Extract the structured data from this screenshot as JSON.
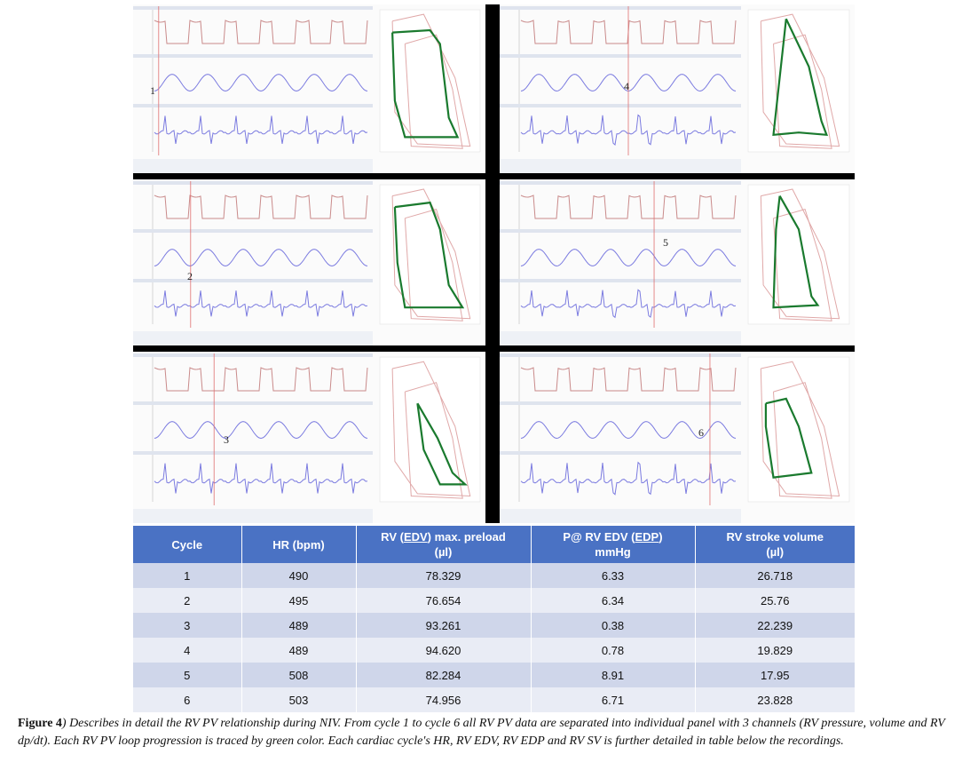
{
  "panels": [
    {
      "label": "1"
    },
    {
      "label": "4"
    },
    {
      "label": "2"
    },
    {
      "label": "5"
    },
    {
      "label": "3"
    },
    {
      "label": "6"
    }
  ],
  "table": {
    "headers": {
      "cycle": "Cycle",
      "hr": "HR (bpm)",
      "edv_1": "RV (",
      "edv_ul": "EDV",
      "edv_2": ") max. preload",
      "edv_unit": "(µl)",
      "edp_1": "P@ RV EDV (",
      "edp_ul": "EDP",
      "edp_2": ")",
      "edp_unit": "mmHg",
      "sv_1": "RV stroke volume",
      "sv_unit": "(µl)"
    },
    "rows": [
      {
        "cycle": "1",
        "hr": "490",
        "edv": "78.329",
        "edp": "6.33",
        "sv": "26.718"
      },
      {
        "cycle": "2",
        "hr": "495",
        "edv": "76.654",
        "edp": "6.34",
        "sv": "25.76"
      },
      {
        "cycle": "3",
        "hr": "489",
        "edv": "93.261",
        "edp": "0.38",
        "sv": "22.239"
      },
      {
        "cycle": "4",
        "hr": "489",
        "edv": "94.620",
        "edp": "0.78",
        "sv": "19.829"
      },
      {
        "cycle": "5",
        "hr": "508",
        "edv": "82.284",
        "edp": "8.91",
        "sv": "17.95"
      },
      {
        "cycle": "6",
        "hr": "503",
        "edv": "74.956",
        "edp": "6.71",
        "sv": "23.828"
      }
    ]
  },
  "caption": {
    "label": "Figure 4",
    "text": ") Describes in detail the RV PV relationship during NIV. From cycle 1 to cycle 6 all RV PV data are separated into individual panel with 3 channels (RV pressure, volume and RV dp/dt). Each RV PV loop progression is traced by green color. Each cardiac cycle's HR, RV EDV, RV EDP and RV SV is further detailed in table below the recordings."
  },
  "colors": {
    "pressure_trace": "#c98a8a",
    "volume_trace": "#7b7be0",
    "dpdt_trace": "#7b7be0",
    "loop_background": "#e0a8a8",
    "loop_highlight": "#1a7a2e",
    "cursor_line": "#e07070",
    "table_header": "#4a72c4",
    "table_row_odd": "#cfd6ea",
    "table_row_even": "#e9ecf5"
  }
}
